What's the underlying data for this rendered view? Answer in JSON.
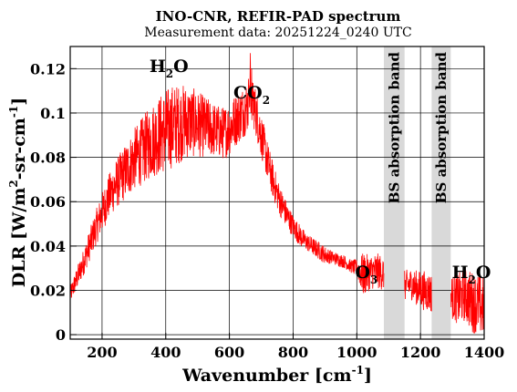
{
  "chart_data": {
    "type": "line",
    "title": "INO-CNR, REFIR-PAD spectrum",
    "subtitle": "Measurement data: 20251224_0240 UTC",
    "xlabel": {
      "base": "Wavenumber [cm",
      "sup": "-1",
      "tail": "]"
    },
    "ylabel": {
      "p1": "DLR [W/m",
      "sup1": "2",
      "p2": "-sr-cm",
      "sup2": "-1",
      "p3": "]"
    },
    "xlim": [
      100,
      1400
    ],
    "ylim": [
      -0.002,
      0.13
    ],
    "xticks": [
      {
        "value": 200,
        "label": "200"
      },
      {
        "value": 400,
        "label": "400"
      },
      {
        "value": 600,
        "label": "600"
      },
      {
        "value": 800,
        "label": "800"
      },
      {
        "value": 1000,
        "label": "1000"
      },
      {
        "value": 1200,
        "label": "1200"
      },
      {
        "value": 1400,
        "label": "1400"
      }
    ],
    "yticks": [
      {
        "value": 0,
        "label": "0"
      },
      {
        "value": 0.02,
        "label": "0.02"
      },
      {
        "value": 0.04,
        "label": "0.04"
      },
      {
        "value": 0.06,
        "label": "0.06"
      },
      {
        "value": 0.08,
        "label": "0.08"
      },
      {
        "value": 0.1,
        "label": "0.1"
      },
      {
        "value": 0.12,
        "label": "0.12"
      }
    ],
    "grid": true,
    "line_color": "#ff0000",
    "band_color": "#d9d9d9",
    "bands": [
      {
        "x0": 1085,
        "x1": 1150,
        "label": "BS absorption band"
      },
      {
        "x0": 1235,
        "x1": 1295,
        "label": "BS absorption band"
      }
    ],
    "annotations": [
      {
        "x": 410,
        "y": 0.1185,
        "base": "H",
        "sub": "2",
        "tail": "O"
      },
      {
        "x": 670,
        "y": 0.1065,
        "base": "CO",
        "sub": "2",
        "tail": ""
      },
      {
        "x": 1030,
        "y": 0.0255,
        "base": "O",
        "sub": "3",
        "tail": ""
      },
      {
        "x": 1360,
        "y": 0.0255,
        "base": "H",
        "sub": "2",
        "tail": "O"
      }
    ],
    "series": [
      {
        "x": [
          100,
          120,
          140,
          160,
          180,
          200,
          220,
          240,
          260,
          280,
          300,
          320,
          340,
          360,
          380,
          400,
          420,
          440,
          460,
          480,
          500,
          520,
          540,
          560,
          580,
          600,
          620,
          640,
          660,
          670,
          680,
          700,
          720,
          740,
          760,
          780,
          800,
          820,
          840,
          860,
          880,
          900,
          920,
          940,
          960,
          980,
          1000,
          1020,
          1040,
          1060,
          1080,
          1150,
          1170,
          1190,
          1210,
          1230,
          1300,
          1320,
          1340,
          1360,
          1380,
          1400
        ],
        "y": [
          0.018,
          0.025,
          0.032,
          0.04,
          0.048,
          0.055,
          0.062,
          0.067,
          0.071,
          0.075,
          0.079,
          0.082,
          0.085,
          0.088,
          0.09,
          0.092,
          0.094,
          0.095,
          0.096,
          0.096,
          0.095,
          0.094,
          0.093,
          0.092,
          0.091,
          0.093,
          0.097,
          0.1,
          0.104,
          0.108,
          0.102,
          0.09,
          0.078,
          0.068,
          0.06,
          0.054,
          0.049,
          0.045,
          0.042,
          0.04,
          0.038,
          0.036,
          0.035,
          0.034,
          0.033,
          0.031,
          0.03,
          0.027,
          0.028,
          0.029,
          0.028,
          0.022,
          0.023,
          0.021,
          0.02,
          0.019,
          0.017,
          0.016,
          0.018,
          0.015,
          0.014,
          0.012
        ],
        "noise": [
          0.004,
          0.005,
          0.006,
          0.007,
          0.008,
          0.009,
          0.01,
          0.011,
          0.012,
          0.013,
          0.014,
          0.015,
          0.016,
          0.017,
          0.018,
          0.019,
          0.019,
          0.018,
          0.017,
          0.016,
          0.015,
          0.014,
          0.013,
          0.012,
          0.012,
          0.012,
          0.012,
          0.012,
          0.012,
          0.012,
          0.011,
          0.01,
          0.009,
          0.008,
          0.007,
          0.006,
          0.005,
          0.005,
          0.004,
          0.004,
          0.004,
          0.004,
          0.003,
          0.003,
          0.003,
          0.003,
          0.004,
          0.01,
          0.008,
          0.008,
          0.008,
          0.007,
          0.007,
          0.008,
          0.009,
          0.009,
          0.01,
          0.012,
          0.012,
          0.014,
          0.014,
          0.014
        ]
      }
    ]
  }
}
